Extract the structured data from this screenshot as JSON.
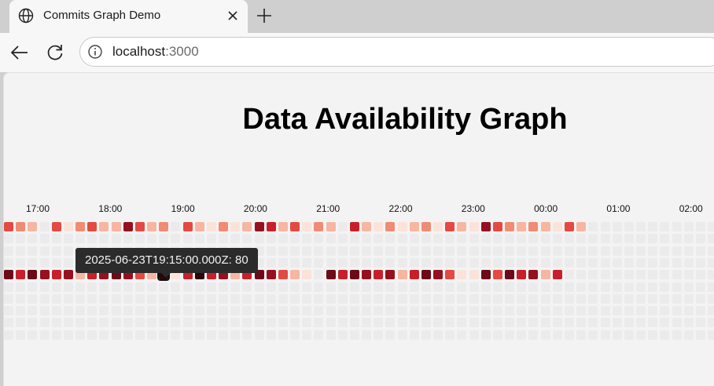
{
  "browser": {
    "tab_title": "Commits Graph Demo",
    "url_host": "localhost",
    "url_port": ":3000",
    "icons": {
      "tab": "globe-icon",
      "close": "close-icon",
      "new_tab": "plus-icon",
      "back": "back-arrow-icon",
      "reload": "reload-icon",
      "site_info": "info-icon"
    }
  },
  "page": {
    "title": "Data Availability Graph"
  },
  "graph": {
    "hour_labels": [
      "17:00",
      "18:00",
      "19:00",
      "20:00",
      "21:00",
      "22:00",
      "23:00",
      "00:00",
      "01:00",
      "02:00"
    ],
    "rows": 10,
    "columns": 61,
    "empty_color": "#ebebeb",
    "color_scale": [
      "#ebebeb",
      "#fbe3da",
      "#f6b6a2",
      "#ef8c73",
      "#e34a42",
      "#c8202b",
      "#96111f",
      "#6d0a18",
      "#2a0609"
    ],
    "filled_rows": [
      {
        "row": 0,
        "levels": [
          4,
          3,
          2,
          0,
          4,
          1,
          3,
          4,
          2,
          2,
          6,
          4,
          2,
          3,
          0,
          4,
          2,
          1,
          3,
          1,
          2,
          6,
          5,
          2,
          4,
          1,
          3,
          2,
          0,
          5,
          2,
          1,
          3,
          1,
          2,
          3,
          1,
          4,
          2,
          1,
          6,
          4,
          3,
          2,
          3,
          2,
          1,
          4,
          2,
          0,
          0,
          0,
          0,
          0,
          0,
          0,
          0,
          0,
          0,
          0,
          0
        ]
      },
      {
        "row": 4,
        "levels": [
          7,
          5,
          7,
          6,
          5,
          6,
          2,
          5,
          6,
          7,
          6,
          4,
          2,
          1,
          1,
          5,
          8,
          5,
          6,
          2,
          5,
          7,
          6,
          4,
          2,
          1,
          0,
          7,
          5,
          7,
          6,
          5,
          6,
          2,
          5,
          7,
          6,
          4,
          1,
          1,
          7,
          4,
          7,
          5,
          6,
          2,
          5,
          0,
          0,
          0,
          0,
          0,
          0,
          0,
          0,
          0,
          0,
          0,
          0,
          0,
          0
        ]
      }
    ]
  },
  "tooltip": {
    "text": "2025-06-23T19:15:00.000Z: 80"
  }
}
